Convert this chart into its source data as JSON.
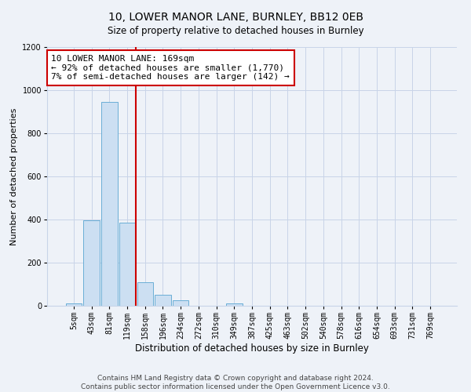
{
  "title": "10, LOWER MANOR LANE, BURNLEY, BB12 0EB",
  "subtitle": "Size of property relative to detached houses in Burnley",
  "xlabel": "Distribution of detached houses by size in Burnley",
  "ylabel": "Number of detached properties",
  "bin_labels": [
    "5sqm",
    "43sqm",
    "81sqm",
    "119sqm",
    "158sqm",
    "196sqm",
    "234sqm",
    "272sqm",
    "310sqm",
    "349sqm",
    "387sqm",
    "425sqm",
    "463sqm",
    "502sqm",
    "540sqm",
    "578sqm",
    "616sqm",
    "654sqm",
    "693sqm",
    "731sqm",
    "769sqm"
  ],
  "bar_heights": [
    10,
    395,
    945,
    385,
    110,
    50,
    25,
    0,
    0,
    10,
    0,
    0,
    0,
    0,
    0,
    0,
    0,
    0,
    0,
    0,
    0
  ],
  "bar_color": "#ccdff2",
  "bar_edge_color": "#6aaed6",
  "vline_color": "#cc0000",
  "annotation_text": "10 LOWER MANOR LANE: 169sqm\n← 92% of detached houses are smaller (1,770)\n7% of semi-detached houses are larger (142) →",
  "annotation_box_color": "#cc0000",
  "ylim": [
    0,
    1200
  ],
  "yticks": [
    0,
    200,
    400,
    600,
    800,
    1000,
    1200
  ],
  "footer_text": "Contains HM Land Registry data © Crown copyright and database right 2024.\nContains public sector information licensed under the Open Government Licence v3.0.",
  "bg_color": "#eef2f8",
  "plot_bg_color": "#eef2f8",
  "grid_color": "#c8d4e8",
  "title_fontsize": 10,
  "xlabel_fontsize": 8.5,
  "ylabel_fontsize": 8,
  "tick_fontsize": 7,
  "annotation_fontsize": 8,
  "footer_fontsize": 6.5,
  "vline_bin_index": 4
}
